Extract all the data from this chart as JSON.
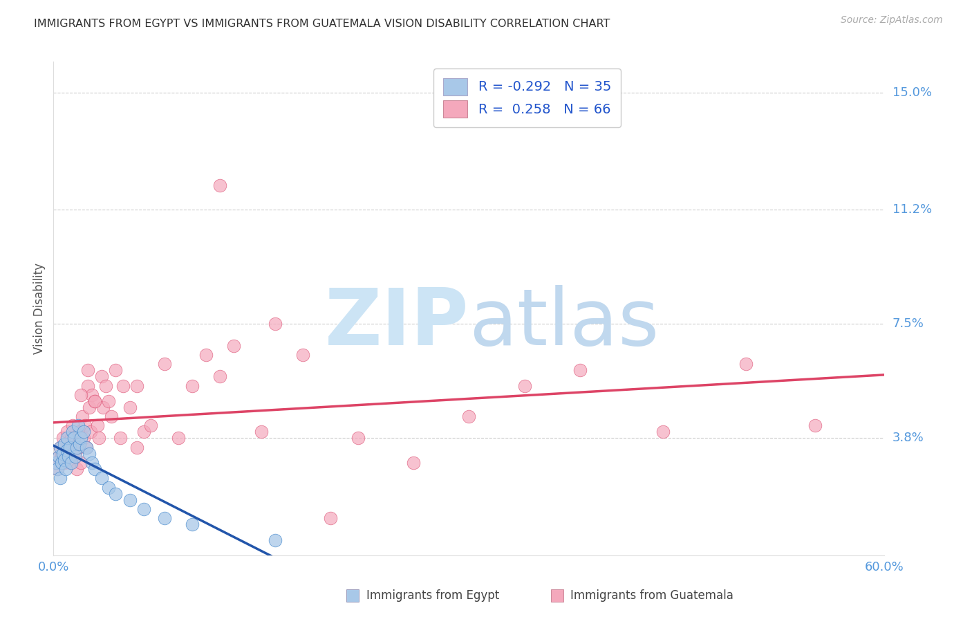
{
  "title": "IMMIGRANTS FROM EGYPT VS IMMIGRANTS FROM GUATEMALA VISION DISABILITY CORRELATION CHART",
  "source": "Source: ZipAtlas.com",
  "ylabel": "Vision Disability",
  "ytick_labels": [
    "3.8%",
    "7.5%",
    "11.2%",
    "15.0%"
  ],
  "ytick_values": [
    0.038,
    0.075,
    0.112,
    0.15
  ],
  "xtick_labels": [
    "0.0%",
    "60.0%"
  ],
  "xlim": [
    0.0,
    0.6
  ],
  "ylim": [
    0.0,
    0.16
  ],
  "legend_line1": "R = -0.292   N = 35",
  "legend_line2": "R =  0.258   N = 66",
  "egypt_color": "#a8c8e8",
  "egypt_edge_color": "#4488cc",
  "egypt_line_color": "#2255aa",
  "egypt_line_dash_color": "#6699cc",
  "guatemala_color": "#f4a8bc",
  "guatemala_edge_color": "#dd5577",
  "guatemala_line_color": "#dd4466",
  "watermark_zip_color": "#cce4f5",
  "watermark_atlas_color": "#c0d8ee",
  "background_color": "#ffffff",
  "grid_color": "#cccccc",
  "egypt_x": [
    0.002,
    0.003,
    0.004,
    0.005,
    0.005,
    0.006,
    0.007,
    0.008,
    0.008,
    0.009,
    0.01,
    0.01,
    0.011,
    0.012,
    0.013,
    0.014,
    0.015,
    0.016,
    0.017,
    0.018,
    0.019,
    0.02,
    0.022,
    0.024,
    0.026,
    0.028,
    0.03,
    0.035,
    0.04,
    0.045,
    0.055,
    0.065,
    0.08,
    0.1,
    0.16
  ],
  "egypt_y": [
    0.03,
    0.028,
    0.032,
    0.035,
    0.025,
    0.03,
    0.033,
    0.031,
    0.036,
    0.028,
    0.034,
    0.038,
    0.032,
    0.035,
    0.03,
    0.04,
    0.038,
    0.032,
    0.035,
    0.042,
    0.036,
    0.038,
    0.04,
    0.035,
    0.033,
    0.03,
    0.028,
    0.025,
    0.022,
    0.02,
    0.018,
    0.015,
    0.012,
    0.01,
    0.005
  ],
  "guatemala_x": [
    0.002,
    0.003,
    0.004,
    0.005,
    0.006,
    0.007,
    0.008,
    0.009,
    0.01,
    0.01,
    0.011,
    0.012,
    0.013,
    0.014,
    0.015,
    0.016,
    0.017,
    0.018,
    0.019,
    0.02,
    0.021,
    0.022,
    0.023,
    0.024,
    0.025,
    0.026,
    0.027,
    0.028,
    0.03,
    0.032,
    0.033,
    0.035,
    0.036,
    0.038,
    0.04,
    0.042,
    0.045,
    0.048,
    0.05,
    0.055,
    0.06,
    0.065,
    0.07,
    0.08,
    0.09,
    0.1,
    0.11,
    0.12,
    0.13,
    0.15,
    0.16,
    0.18,
    0.2,
    0.22,
    0.26,
    0.3,
    0.34,
    0.38,
    0.44,
    0.5,
    0.55,
    0.02,
    0.025,
    0.03,
    0.06,
    0.12
  ],
  "guatemala_y": [
    0.03,
    0.028,
    0.032,
    0.035,
    0.033,
    0.038,
    0.03,
    0.032,
    0.036,
    0.04,
    0.035,
    0.03,
    0.038,
    0.042,
    0.036,
    0.032,
    0.028,
    0.035,
    0.04,
    0.03,
    0.045,
    0.038,
    0.042,
    0.035,
    0.055,
    0.048,
    0.04,
    0.052,
    0.05,
    0.042,
    0.038,
    0.058,
    0.048,
    0.055,
    0.05,
    0.045,
    0.06,
    0.038,
    0.055,
    0.048,
    0.055,
    0.04,
    0.042,
    0.062,
    0.038,
    0.055,
    0.065,
    0.058,
    0.068,
    0.04,
    0.075,
    0.065,
    0.012,
    0.038,
    0.03,
    0.045,
    0.055,
    0.06,
    0.04,
    0.062,
    0.042,
    0.052,
    0.06,
    0.05,
    0.035,
    0.12
  ]
}
